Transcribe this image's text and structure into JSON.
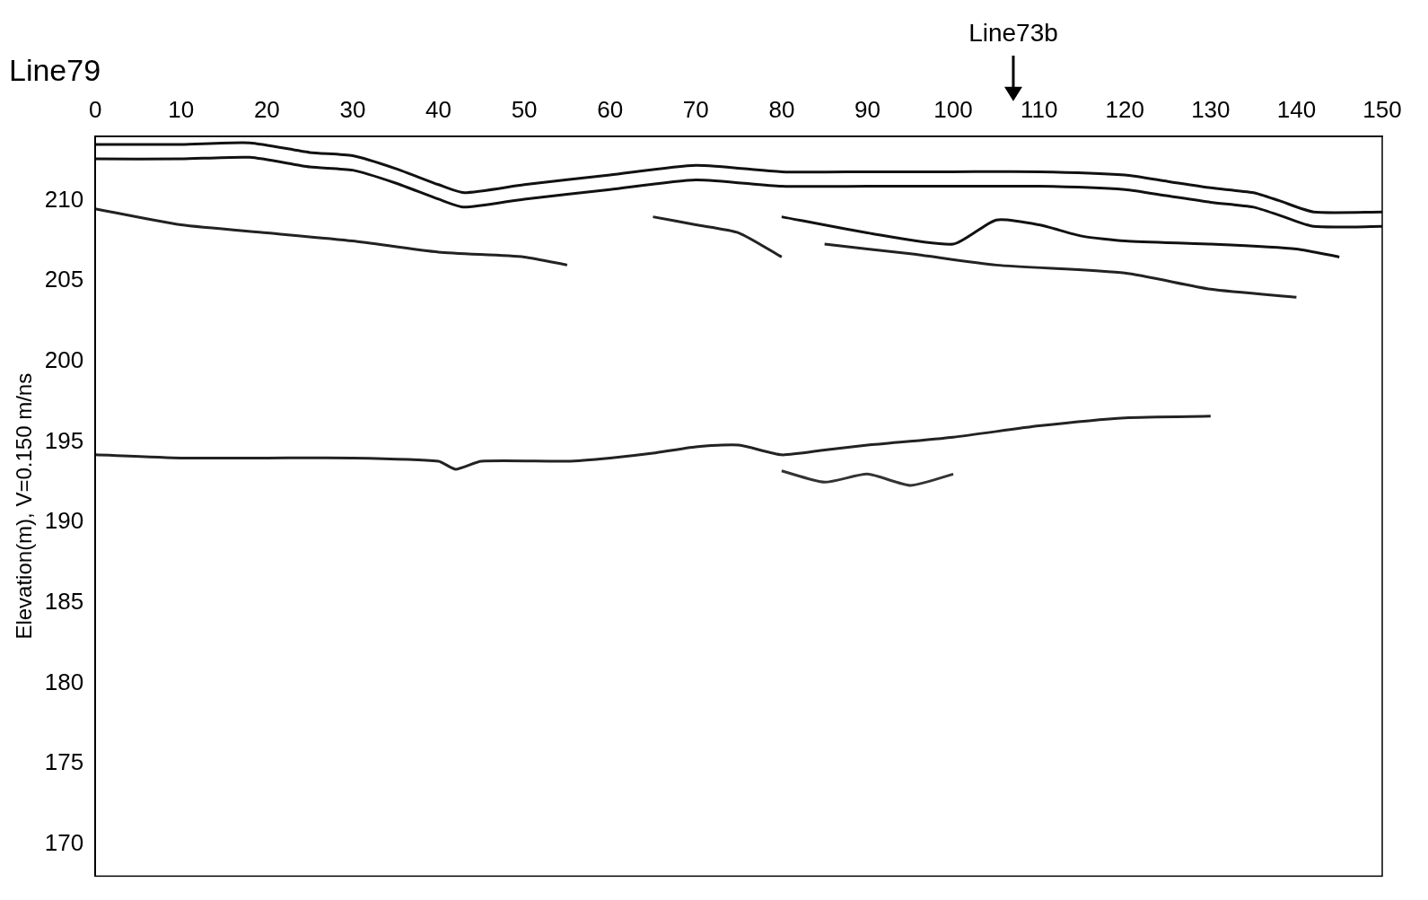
{
  "chart_data": {
    "type": "line",
    "title": "Line79",
    "y_label": "Elevation(m), V=0.150 m/ns",
    "xlim": [
      0,
      150
    ],
    "xticks": [
      0,
      10,
      20,
      30,
      40,
      50,
      60,
      70,
      80,
      90,
      100,
      110,
      120,
      130,
      140,
      150
    ],
    "ylim": [
      168,
      214
    ],
    "yticks": [
      170,
      175,
      180,
      185,
      190,
      195,
      200,
      205,
      210
    ],
    "grid": false,
    "annotations": [
      {
        "text": "Line73b",
        "x": 107
      }
    ],
    "series": [
      {
        "color": "#111111",
        "x": [
          0,
          10,
          18,
          25,
          30,
          35,
          40,
          43,
          50,
          60,
          70,
          80,
          90,
          100,
          110,
          120,
          125,
          130,
          135,
          138,
          142,
          150
        ],
        "values": [
          213.5,
          213.5,
          213.6,
          213,
          212.8,
          212,
          211,
          210.5,
          211,
          211.6,
          212.2,
          211.8,
          211.8,
          211.8,
          211.8,
          211.6,
          211.2,
          210.8,
          210.5,
          210,
          209.3,
          209.3
        ]
      },
      {
        "color": "#111111",
        "x": [
          0,
          10,
          18,
          25,
          30,
          35,
          40,
          43,
          50,
          60,
          70,
          80,
          90,
          100,
          110,
          120,
          125,
          130,
          135,
          138,
          142,
          150
        ],
        "values": [
          212.6,
          212.6,
          212.7,
          212.1,
          211.9,
          211.1,
          210.1,
          209.6,
          210.1,
          210.7,
          211.3,
          210.9,
          210.9,
          210.9,
          210.9,
          210.7,
          210.3,
          209.9,
          209.6,
          209.1,
          208.4,
          208.4
        ]
      },
      {
        "color": "#222222",
        "x": [
          0,
          10,
          20,
          30,
          40,
          50,
          55,
          58,
          65,
          70,
          75,
          80
        ],
        "values": [
          209.5,
          208.5,
          208,
          207.5,
          206.8,
          206.5,
          206,
          null,
          209,
          208.5,
          208,
          206.5
        ]
      },
      {
        "color": "#111111",
        "x": [
          80,
          90,
          100,
          105,
          110,
          115,
          120,
          130,
          140,
          145
        ],
        "values": [
          209,
          208,
          207.3,
          208.8,
          208.5,
          207.8,
          207.5,
          207.3,
          207,
          206.5
        ]
      },
      {
        "color": "#222222",
        "x": [
          85,
          95,
          105,
          120,
          130,
          140
        ],
        "values": [
          207.3,
          206.7,
          206,
          205.5,
          204.5,
          204
        ]
      },
      {
        "color": "#222222",
        "x": [
          0,
          10,
          20,
          30,
          40,
          42,
          45,
          55,
          60,
          65,
          70,
          75,
          80,
          85,
          90,
          100,
          110,
          120,
          130
        ],
        "values": [
          194.2,
          194,
          194,
          194,
          193.8,
          193.3,
          193.8,
          193.8,
          194,
          194.3,
          194.7,
          194.8,
          194.2,
          194.5,
          194.8,
          195.3,
          196,
          196.5,
          196.6
        ]
      },
      {
        "color": "#333333",
        "x": [
          80,
          85,
          90,
          95,
          100
        ],
        "values": [
          193.2,
          192.5,
          193,
          192.3,
          193
        ]
      }
    ]
  }
}
